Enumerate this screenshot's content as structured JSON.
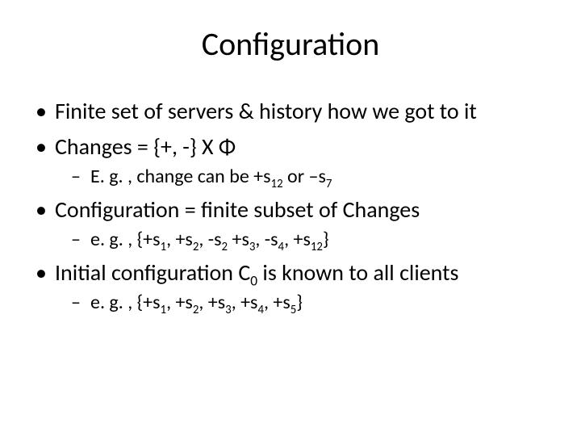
{
  "title": "Configuration",
  "bullets": {
    "b1": "Finite set of servers & history how we got to it",
    "b2_pre": "Changes = {+, -} X ",
    "b2_phi": "Φ",
    "b2_sub_pre": "E. g. , change can be +s",
    "b2_sub_12": "12",
    "b2_sub_mid": " or –s",
    "b2_sub_7": "7",
    "b3": "Configuration = finite subset of Changes",
    "b3_sub_pre": " e. g. , {+s",
    "b3_sub_1": "1",
    "b3_sub_c1": ", +s",
    "b3_sub_2": "2",
    "b3_sub_c2": ", -s",
    "b3_sub_2b": "2",
    "b3_sub_c3": " +s",
    "b3_sub_3": "3",
    "b3_sub_c4": ", -s",
    "b3_sub_4": "4",
    "b3_sub_c5": ", +s",
    "b3_sub_12b": "12",
    "b3_sub_end": "}",
    "b4_pre": "Initial configuration C",
    "b4_0": "0",
    "b4_post": " is known to all clients",
    "b4_sub_pre": "e. g. , {+s",
    "b4_sub_1": "1",
    "b4_sub_c1": ", +s",
    "b4_sub_2": "2",
    "b4_sub_c2": ", +s",
    "b4_sub_3": "3",
    "b4_sub_c3": ", +s",
    "b4_sub_4": "4",
    "b4_sub_c4": ", +s",
    "b4_sub_5": "5",
    "b4_sub_end": "}"
  }
}
